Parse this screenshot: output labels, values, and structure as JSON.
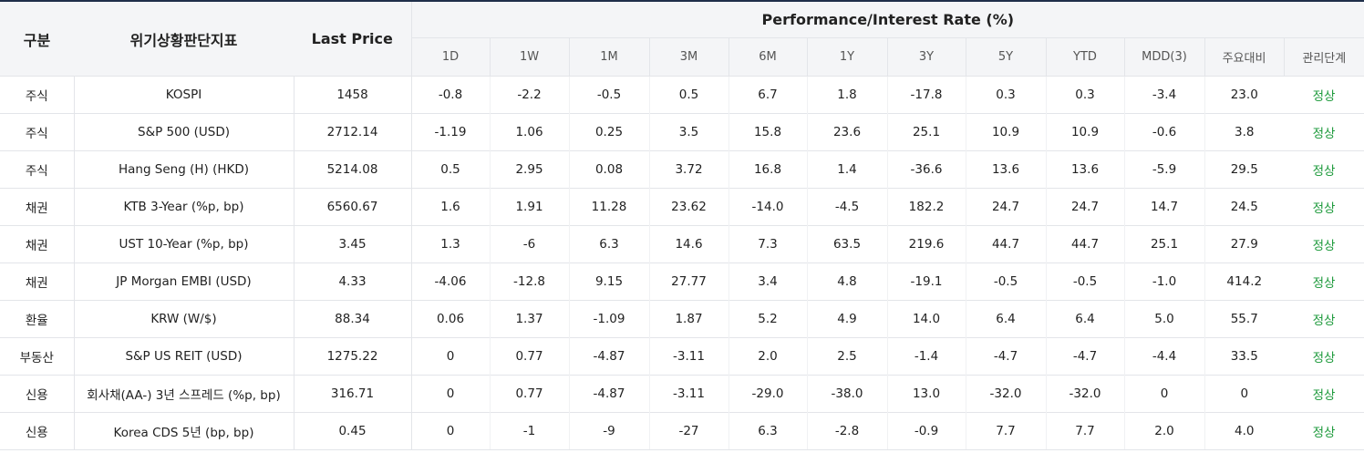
{
  "header": {
    "category": "구분",
    "indicator": "위기상황판단지표",
    "last_price": "Last Price",
    "performance": "Performance/Interest Rate (%)",
    "periods": [
      "1D",
      "1W",
      "1M",
      "3M",
      "6M",
      "1Y",
      "3Y",
      "5Y",
      "YTD",
      "MDD(3)",
      "주요대비",
      "관리단계"
    ]
  },
  "rows": [
    {
      "category": "주식",
      "name": "KOSPI",
      "price": "1458",
      "values": [
        "-0.8",
        "-2.2",
        "-0.5",
        "0.5",
        "6.7",
        "1.8",
        "-17.8",
        "0.3",
        "0.3",
        "-3.4",
        "23.0"
      ],
      "status": "정상"
    },
    {
      "category": "주식",
      "name": "S&P 500 (USD)",
      "price": "2712.14",
      "values": [
        "-1.19",
        "1.06",
        "0.25",
        "3.5",
        "15.8",
        "23.6",
        "25.1",
        "10.9",
        "10.9",
        "-0.6",
        "3.8"
      ],
      "status": "정상"
    },
    {
      "category": "주식",
      "name": "Hang Seng (H) (HKD)",
      "price": "5214.08",
      "values": [
        "0.5",
        "2.95",
        "0.08",
        "3.72",
        "16.8",
        "1.4",
        "-36.6",
        "13.6",
        "13.6",
        "-5.9",
        "29.5"
      ],
      "status": "정상"
    },
    {
      "category": "채권",
      "name": "KTB 3-Year (%p, bp)",
      "price": "6560.67",
      "values": [
        "1.6",
        "1.91",
        "11.28",
        "23.62",
        "-14.0",
        "-4.5",
        "182.2",
        "24.7",
        "24.7",
        "14.7",
        "24.5"
      ],
      "status": "정상"
    },
    {
      "category": "채권",
      "name": "UST 10-Year (%p, bp)",
      "price": "3.45",
      "values": [
        "1.3",
        "-6",
        "6.3",
        "14.6",
        "7.3",
        "63.5",
        "219.6",
        "44.7",
        "44.7",
        "25.1",
        "27.9"
      ],
      "status": "정상"
    },
    {
      "category": "채권",
      "name": "JP Morgan EMBI (USD)",
      "price": "4.33",
      "values": [
        "-4.06",
        "-12.8",
        "9.15",
        "27.77",
        "3.4",
        "4.8",
        "-19.1",
        "-0.5",
        "-0.5",
        "-1.0",
        "414.2"
      ],
      "status": "정상"
    },
    {
      "category": "환율",
      "name": "KRW (W/$)",
      "price": "88.34",
      "values": [
        "0.06",
        "1.37",
        "-1.09",
        "1.87",
        "5.2",
        "4.9",
        "14.0",
        "6.4",
        "6.4",
        "5.0",
        "55.7"
      ],
      "status": "정상"
    },
    {
      "category": "부동산",
      "name": "S&P US REIT (USD)",
      "price": "1275.22",
      "values": [
        "0",
        "0.77",
        "-4.87",
        "-3.11",
        "2.0",
        "2.5",
        "-1.4",
        "-4.7",
        "-4.7",
        "-4.4",
        "33.5"
      ],
      "status": "정상"
    },
    {
      "category": "신용",
      "name": "회사채(AA-) 3년 스프레드 (%p, bp)",
      "price": "316.71",
      "values": [
        "0",
        "0.77",
        "-4.87",
        "-3.11",
        "-29.0",
        "-38.0",
        "13.0",
        "-32.0",
        "-32.0",
        "0",
        "0"
      ],
      "status": "정상"
    },
    {
      "category": "신용",
      "name": "Korea CDS 5년 (bp, bp)",
      "price": "0.45",
      "values": [
        "0",
        "-1",
        "-9",
        "-27",
        "6.3",
        "-2.8",
        "-0.9",
        "7.7",
        "7.7",
        "2.0",
        "4.0"
      ],
      "status": "정상"
    }
  ],
  "colors": {
    "header_bg": "#f4f5f7",
    "status_normal": "#1e9a3c",
    "top_border": "#1f2f4a"
  }
}
